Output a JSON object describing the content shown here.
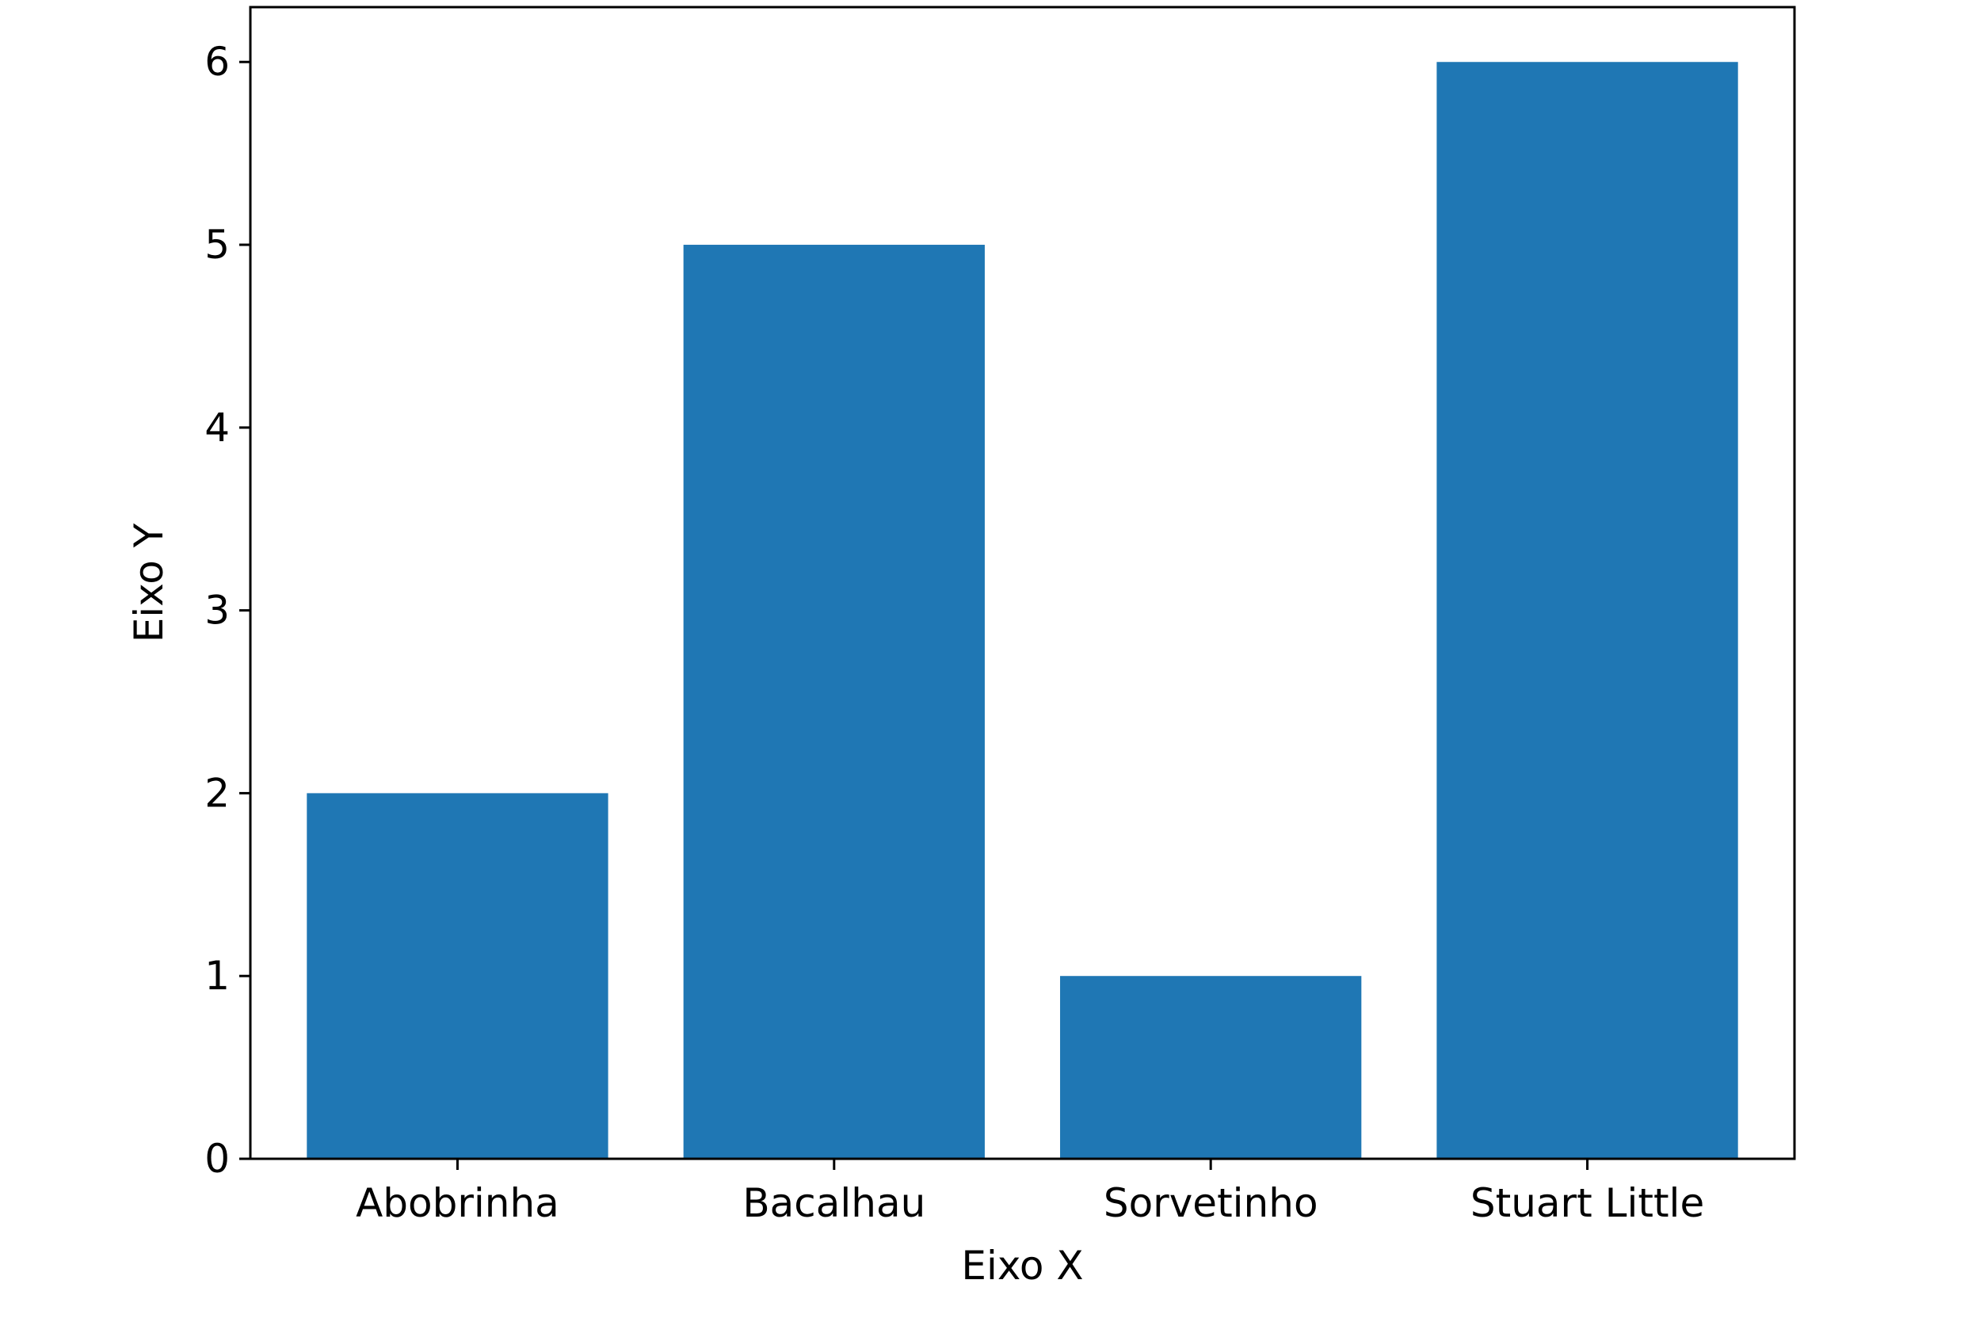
{
  "chart_data": {
    "type": "bar",
    "title": "",
    "xlabel": "Eixo X",
    "ylabel": "Eixo Y",
    "categories": [
      "Abobrinha",
      "Bacalhau",
      "Sorvetinho",
      "Stuart Little"
    ],
    "values": [
      2,
      5,
      1,
      6
    ],
    "ylim": [
      0,
      6.3
    ],
    "yticks": [
      "0",
      "1",
      "2",
      "3",
      "4",
      "5",
      "6"
    ],
    "grid": false,
    "bar_color": "#1f77b4"
  }
}
